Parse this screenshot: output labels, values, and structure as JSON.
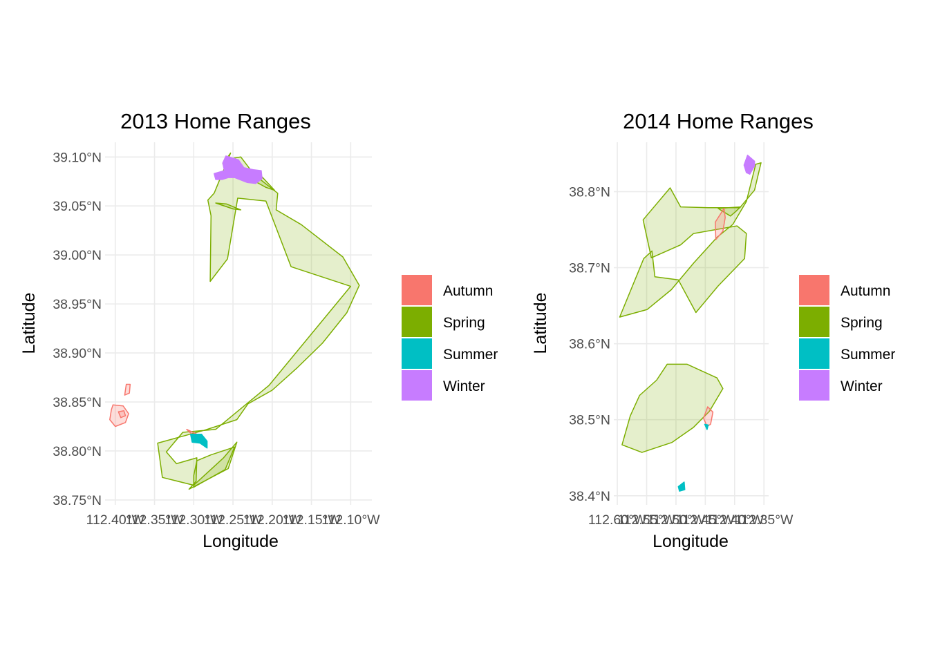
{
  "chart_data": [
    {
      "type": "map",
      "title": "2013 Home Ranges",
      "xlabel": "Longitude",
      "ylabel": "Latitude",
      "xlim": [
        -112.413,
        -112.073
      ],
      "ylim": [
        38.745,
        39.115
      ],
      "x_ticks": [
        -112.4,
        -112.35,
        -112.3,
        -112.25,
        -112.2,
        -112.15,
        -112.1
      ],
      "x_tick_labels": [
        "112.40°W",
        "112.35°W",
        "112.30°W",
        "112.25°W",
        "112.20°W",
        "112.15°W",
        "112.10°W"
      ],
      "y_ticks": [
        38.75,
        38.8,
        38.85,
        38.9,
        38.95,
        39.0,
        39.05,
        39.1
      ],
      "y_tick_labels": [
        "38.75°N",
        "38.80°N",
        "38.85°N",
        "38.90°N",
        "38.95°N",
        "39.00°N",
        "39.05°N",
        "39.10°N"
      ],
      "polygons": [
        {
          "season": "Spring",
          "coords": [
            [
              -112.346,
              38.808
            ],
            [
              -112.287,
              38.821
            ],
            [
              -112.245,
              38.832
            ],
            [
              -112.231,
              38.848
            ],
            [
              -112.2,
              38.862
            ],
            [
              -112.168,
              38.885
            ],
            [
              -112.136,
              38.91
            ],
            [
              -112.105,
              38.941
            ],
            [
              -112.089,
              38.969
            ],
            [
              -112.11,
              38.998
            ],
            [
              -112.163,
              39.031
            ],
            [
              -112.195,
              39.046
            ],
            [
              -112.193,
              39.063
            ],
            [
              -112.223,
              39.082
            ],
            [
              -112.24,
              39.1
            ],
            [
              -112.255,
              39.098
            ],
            [
              -112.263,
              39.093
            ],
            [
              -112.253,
              39.104
            ],
            [
              -112.274,
              39.063
            ],
            [
              -112.282,
              39.056
            ],
            [
              -112.278,
              39.04
            ],
            [
              -112.279,
              38.973
            ],
            [
              -112.257,
              38.996
            ],
            [
              -112.244,
              39.058
            ],
            [
              -112.208,
              39.055
            ],
            [
              -112.176,
              38.988
            ],
            [
              -112.1,
              38.968
            ],
            [
              -112.204,
              38.867
            ],
            [
              -112.272,
              38.822
            ],
            [
              -112.314,
              38.819
            ],
            [
              -112.335,
              38.799
            ],
            [
              -112.322,
              38.787
            ],
            [
              -112.296,
              38.793
            ],
            [
              -112.297,
              38.769
            ],
            [
              -112.306,
              38.761
            ],
            [
              -112.256,
              38.782
            ],
            [
              -112.245,
              38.809
            ],
            [
              -112.262,
              38.793
            ],
            [
              -112.3,
              38.765
            ],
            [
              -112.34,
              38.773
            ]
          ]
        },
        {
          "season": "Spring",
          "coords": [
            [
              -112.3,
              38.763
            ],
            [
              -112.26,
              38.781
            ],
            [
              -112.248,
              38.804
            ],
            [
              -112.278,
              38.796
            ],
            [
              -112.296,
              38.79
            ],
            [
              -112.3,
              38.775
            ]
          ]
        },
        {
          "season": "Spring",
          "coords": [
            [
              -112.272,
              39.053
            ],
            [
              -112.25,
              39.047
            ],
            [
              -112.24,
              39.046
            ],
            [
              -112.258,
              39.052
            ]
          ]
        },
        {
          "season": "Spring",
          "coords": [
            [
              -112.24,
              39.083
            ],
            [
              -112.218,
              39.084
            ],
            [
              -112.197,
              39.066
            ],
            [
              -112.208,
              39.069
            ]
          ]
        },
        {
          "season": "Autumn",
          "coords": [
            [
              -112.403,
              38.847
            ],
            [
              -112.39,
              38.846
            ],
            [
              -112.383,
              38.838
            ],
            [
              -112.387,
              38.829
            ],
            [
              -112.4,
              38.825
            ],
            [
              -112.407,
              38.832
            ],
            [
              -112.405,
              38.842
            ]
          ]
        },
        {
          "season": "Autumn",
          "coords": [
            [
              -112.386,
              38.868
            ],
            [
              -112.381,
              38.868
            ],
            [
              -112.382,
              38.859
            ],
            [
              -112.388,
              38.857
            ]
          ]
        },
        {
          "season": "Autumn",
          "coords": [
            [
              -112.396,
              38.84
            ],
            [
              -112.389,
              38.841
            ],
            [
              -112.387,
              38.836
            ],
            [
              -112.393,
              38.834
            ]
          ]
        },
        {
          "season": "Autumn",
          "coords": [
            [
              -112.309,
              38.822
            ],
            [
              -112.293,
              38.816
            ],
            [
              -112.286,
              38.812
            ],
            [
              -112.3,
              38.815
            ]
          ]
        },
        {
          "season": "Summer",
          "coords": [
            [
              -112.304,
              38.817
            ],
            [
              -112.29,
              38.817
            ],
            [
              -112.283,
              38.81
            ],
            [
              -112.283,
              38.803
            ],
            [
              -112.292,
              38.808
            ],
            [
              -112.302,
              38.809
            ]
          ]
        },
        {
          "season": "Winter",
          "coords": [
            [
              -112.259,
              39.101
            ],
            [
              -112.243,
              39.097
            ],
            [
              -112.236,
              39.089
            ],
            [
              -112.224,
              39.087
            ],
            [
              -112.214,
              39.086
            ],
            [
              -112.213,
              39.078
            ],
            [
              -112.221,
              39.073
            ],
            [
              -112.232,
              39.074
            ],
            [
              -112.248,
              39.079
            ],
            [
              -112.256,
              39.079
            ],
            [
              -112.264,
              39.077
            ],
            [
              -112.272,
              39.077
            ],
            [
              -112.274,
              39.083
            ],
            [
              -112.261,
              39.086
            ],
            [
              -112.263,
              39.094
            ]
          ]
        }
      ]
    },
    {
      "type": "map",
      "title": "2014 Home Ranges",
      "xlabel": "Longitude",
      "ylabel": "Latitude",
      "xlim": [
        -112.606,
        -112.342
      ],
      "ylim": [
        38.388,
        38.865
      ],
      "x_ticks": [
        -112.6,
        -112.55,
        -112.5,
        -112.45,
        -112.4,
        -112.35
      ],
      "x_tick_labels": [
        "112.60°W",
        "112.55°W",
        "112.50°W",
        "112.45°W",
        "112.40°W",
        "112.35°W"
      ],
      "y_ticks": [
        38.4,
        38.5,
        38.6,
        38.7,
        38.8
      ],
      "y_tick_labels": [
        "38.4°N",
        "38.5°N",
        "38.6°N",
        "38.7°N",
        "38.8°N"
      ],
      "polygons": [
        {
          "season": "Spring",
          "coords": [
            [
              -112.596,
              38.635
            ],
            [
              -112.549,
              38.645
            ],
            [
              -112.508,
              38.671
            ],
            [
              -112.47,
              38.706
            ],
            [
              -112.43,
              38.74
            ],
            [
              -112.403,
              38.757
            ],
            [
              -112.38,
              38.787
            ],
            [
              -112.364,
              38.836
            ],
            [
              -112.355,
              38.838
            ],
            [
              -112.366,
              38.802
            ],
            [
              -112.391,
              38.779
            ],
            [
              -112.445,
              38.779
            ],
            [
              -112.492,
              38.78
            ],
            [
              -112.51,
              38.805
            ],
            [
              -112.556,
              38.763
            ],
            [
              -112.542,
              38.713
            ],
            [
              -112.492,
              38.73
            ],
            [
              -112.47,
              38.745
            ],
            [
              -112.396,
              38.755
            ],
            [
              -112.38,
              38.745
            ],
            [
              -112.383,
              38.712
            ],
            [
              -112.428,
              38.676
            ],
            [
              -112.466,
              38.641
            ],
            [
              -112.496,
              38.684
            ],
            [
              -112.536,
              38.688
            ],
            [
              -112.541,
              38.722
            ],
            [
              -112.555,
              38.712
            ]
          ]
        },
        {
          "season": "Spring",
          "coords": [
            [
              -112.39,
              38.78
            ],
            [
              -112.398,
              38.774
            ],
            [
              -112.407,
              38.768
            ],
            [
              -112.42,
              38.774
            ],
            [
              -112.428,
              38.778
            ]
          ]
        },
        {
          "season": "Spring",
          "coords": [
            [
              -112.592,
              38.467
            ],
            [
              -112.558,
              38.457
            ],
            [
              -112.507,
              38.47
            ],
            [
              -112.47,
              38.49
            ],
            [
              -112.443,
              38.511
            ],
            [
              -112.42,
              38.541
            ],
            [
              -112.43,
              38.555
            ],
            [
              -112.481,
              38.573
            ],
            [
              -112.515,
              38.573
            ],
            [
              -112.533,
              38.552
            ],
            [
              -112.562,
              38.532
            ],
            [
              -112.578,
              38.505
            ]
          ]
        },
        {
          "season": "Autumn",
          "coords": [
            [
              -112.433,
              38.76
            ],
            [
              -112.418,
              38.778
            ],
            [
              -112.416,
              38.766
            ],
            [
              -112.42,
              38.748
            ],
            [
              -112.432,
              38.737
            ]
          ]
        },
        {
          "season": "Autumn",
          "coords": [
            [
              -112.453,
              38.502
            ],
            [
              -112.446,
              38.517
            ],
            [
              -112.437,
              38.51
            ],
            [
              -112.441,
              38.494
            ],
            [
              -112.447,
              38.491
            ]
          ]
        },
        {
          "season": "Summer",
          "coords": [
            [
              -112.451,
              38.494
            ],
            [
              -112.445,
              38.493
            ],
            [
              -112.447,
              38.487
            ]
          ]
        },
        {
          "season": "Summer",
          "coords": [
            [
              -112.496,
              38.412
            ],
            [
              -112.486,
              38.418
            ],
            [
              -112.485,
              38.408
            ],
            [
              -112.494,
              38.406
            ]
          ]
        },
        {
          "season": "Winter",
          "coords": [
            [
              -112.378,
              38.848
            ],
            [
              -112.366,
              38.84
            ],
            [
              -112.366,
              38.834
            ],
            [
              -112.374,
              38.823
            ],
            [
              -112.38,
              38.825
            ],
            [
              -112.384,
              38.835
            ]
          ]
        }
      ]
    }
  ],
  "legend": {
    "items": [
      {
        "label": "Autumn",
        "color": "#F8766D"
      },
      {
        "label": "Spring",
        "color": "#7CAE00"
      },
      {
        "label": "Summer",
        "color": "#00BFC4"
      },
      {
        "label": "Winter",
        "color": "#C77CFF"
      }
    ]
  }
}
